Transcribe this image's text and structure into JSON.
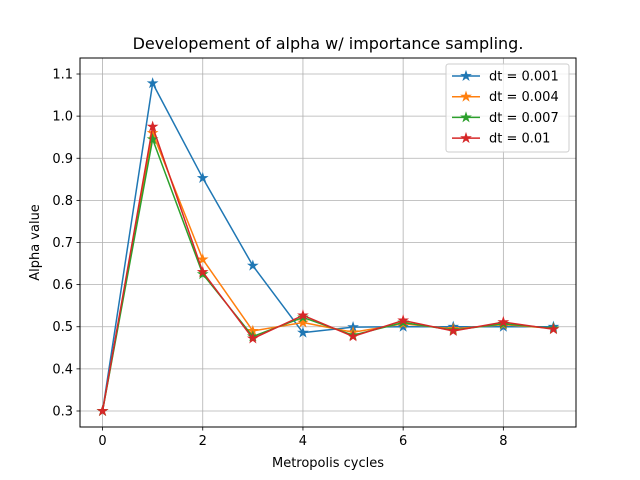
{
  "chart_data": {
    "type": "line",
    "title": "Developement of alpha w/ importance sampling.",
    "xlabel": "Metropolis cycles",
    "ylabel": "Alpha value",
    "xlim": [
      -0.45,
      9.45
    ],
    "ylim": [
      0.262,
      1.138
    ],
    "xticks": [
      0,
      2,
      4,
      6,
      8
    ],
    "yticks": [
      0.3,
      0.4,
      0.5,
      0.6,
      0.7,
      0.8,
      0.9,
      1.0,
      1.1
    ],
    "ytick_labels": [
      "0.3",
      "0.4",
      "0.5",
      "0.6",
      "0.7",
      "0.8",
      "0.9",
      "1.0",
      "1.1"
    ],
    "grid": true,
    "legend_position": "top-right",
    "marker": "star",
    "x": [
      0,
      1,
      2,
      3,
      4,
      5,
      6,
      7,
      8,
      9
    ],
    "series": [
      {
        "name": "dt = 0.001",
        "color": "#1f77b4",
        "values": [
          0.3,
          1.078,
          0.853,
          0.645,
          0.486,
          0.499,
          0.5,
          0.5,
          0.5,
          0.5
        ]
      },
      {
        "name": "dt = 0.004",
        "color": "#ff7f0e",
        "values": [
          0.3,
          0.96,
          0.66,
          0.49,
          0.51,
          0.487,
          0.507,
          0.495,
          0.505,
          0.496
        ]
      },
      {
        "name": "dt = 0.007",
        "color": "#2ca02c",
        "values": [
          0.3,
          0.945,
          0.625,
          0.477,
          0.522,
          0.48,
          0.51,
          0.492,
          0.507,
          0.496
        ]
      },
      {
        "name": "dt = 0.01",
        "color": "#d62728",
        "values": [
          0.3,
          0.975,
          0.63,
          0.472,
          0.527,
          0.477,
          0.515,
          0.49,
          0.511,
          0.494
        ]
      }
    ]
  }
}
